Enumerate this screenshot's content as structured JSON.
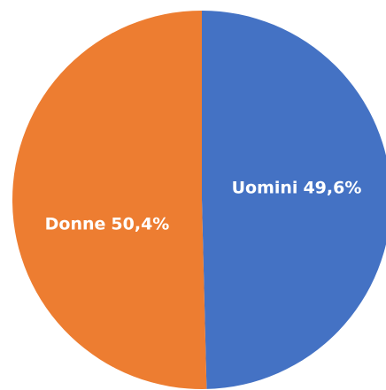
{
  "chart_data": {
    "type": "pie",
    "categories": [
      "Uomini",
      "Donne"
    ],
    "values": [
      49.6,
      50.4
    ],
    "value_labels": [
      "49,6%",
      "50,4%"
    ],
    "colors": [
      "#4472c4",
      "#ed7d31"
    ]
  }
}
